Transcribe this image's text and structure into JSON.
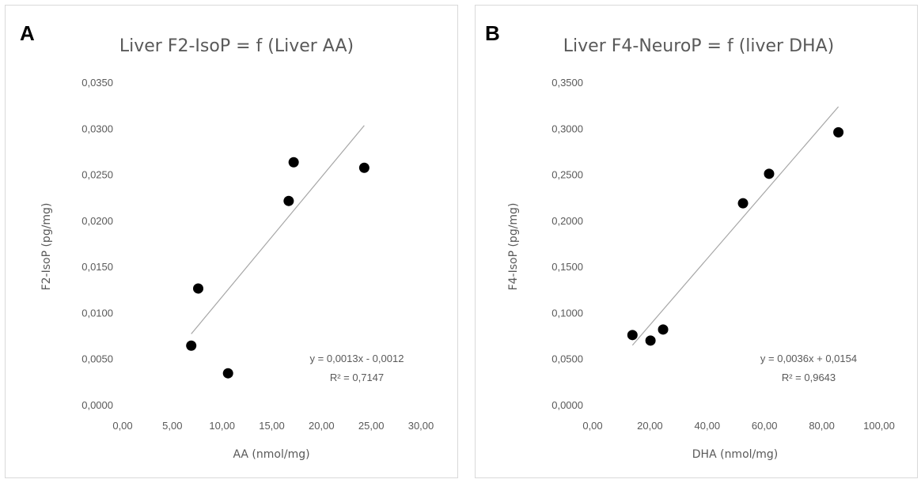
{
  "chart_data": [
    {
      "panel_label": "A",
      "type": "scatter",
      "title": "Liver F2-IsoP = f (Liver AA)",
      "xlabel": "AA (nmol/mg)",
      "ylabel": "F2-IsoP (pg/mg)",
      "xlim": [
        0,
        30
      ],
      "ylim": [
        0,
        0.035
      ],
      "x_ticks": [
        "0,00",
        "5,00",
        "10,00",
        "15,00",
        "20,00",
        "25,00",
        "30,00"
      ],
      "y_ticks": [
        "0,0000",
        "0,0050",
        "0,0100",
        "0,0150",
        "0,0200",
        "0,0250",
        "0,0300",
        "0,0350"
      ],
      "points": [
        {
          "x": 6.9,
          "y": 0.0065
        },
        {
          "x": 7.6,
          "y": 0.0127
        },
        {
          "x": 10.6,
          "y": 0.0035
        },
        {
          "x": 16.7,
          "y": 0.0222
        },
        {
          "x": 17.2,
          "y": 0.0264
        },
        {
          "x": 24.3,
          "y": 0.0258
        }
      ],
      "trendline": {
        "slope": 0.0013,
        "intercept": -0.0012,
        "x_range": [
          6.9,
          24.3
        ]
      },
      "equation": "y = 0,0013x - 0,0012",
      "r_squared": "R² = 0,7147",
      "marker_color": "#000000",
      "line_color": "#a6a6a6"
    },
    {
      "panel_label": "B",
      "type": "scatter",
      "title": "Liver F4-NeuroP = f (liver DHA)",
      "xlabel": "DHA (nmol/mg)",
      "ylabel": "F4-IsoP (pg/mg)",
      "xlim": [
        0,
        100
      ],
      "ylim": [
        0,
        0.35
      ],
      "x_ticks": [
        "0,00",
        "20,00",
        "40,00",
        "60,00",
        "80,00",
        "100,00"
      ],
      "y_ticks": [
        "0,0000",
        "0,0500",
        "0,1000",
        "0,1500",
        "0,2000",
        "0,2500",
        "0,3000",
        "0,3500"
      ],
      "points": [
        {
          "x": 13.9,
          "y": 0.0765
        },
        {
          "x": 20.2,
          "y": 0.0705
        },
        {
          "x": 24.6,
          "y": 0.0825
        },
        {
          "x": 52.5,
          "y": 0.2195
        },
        {
          "x": 61.6,
          "y": 0.2515
        },
        {
          "x": 85.8,
          "y": 0.2965
        }
      ],
      "trendline": {
        "slope": 0.0036,
        "intercept": 0.0154,
        "x_range": [
          13.9,
          85.8
        ]
      },
      "equation": "y = 0,0036x + 0,0154",
      "r_squared": "R² = 0,9643",
      "marker_color": "#000000",
      "line_color": "#a6a6a6"
    }
  ]
}
